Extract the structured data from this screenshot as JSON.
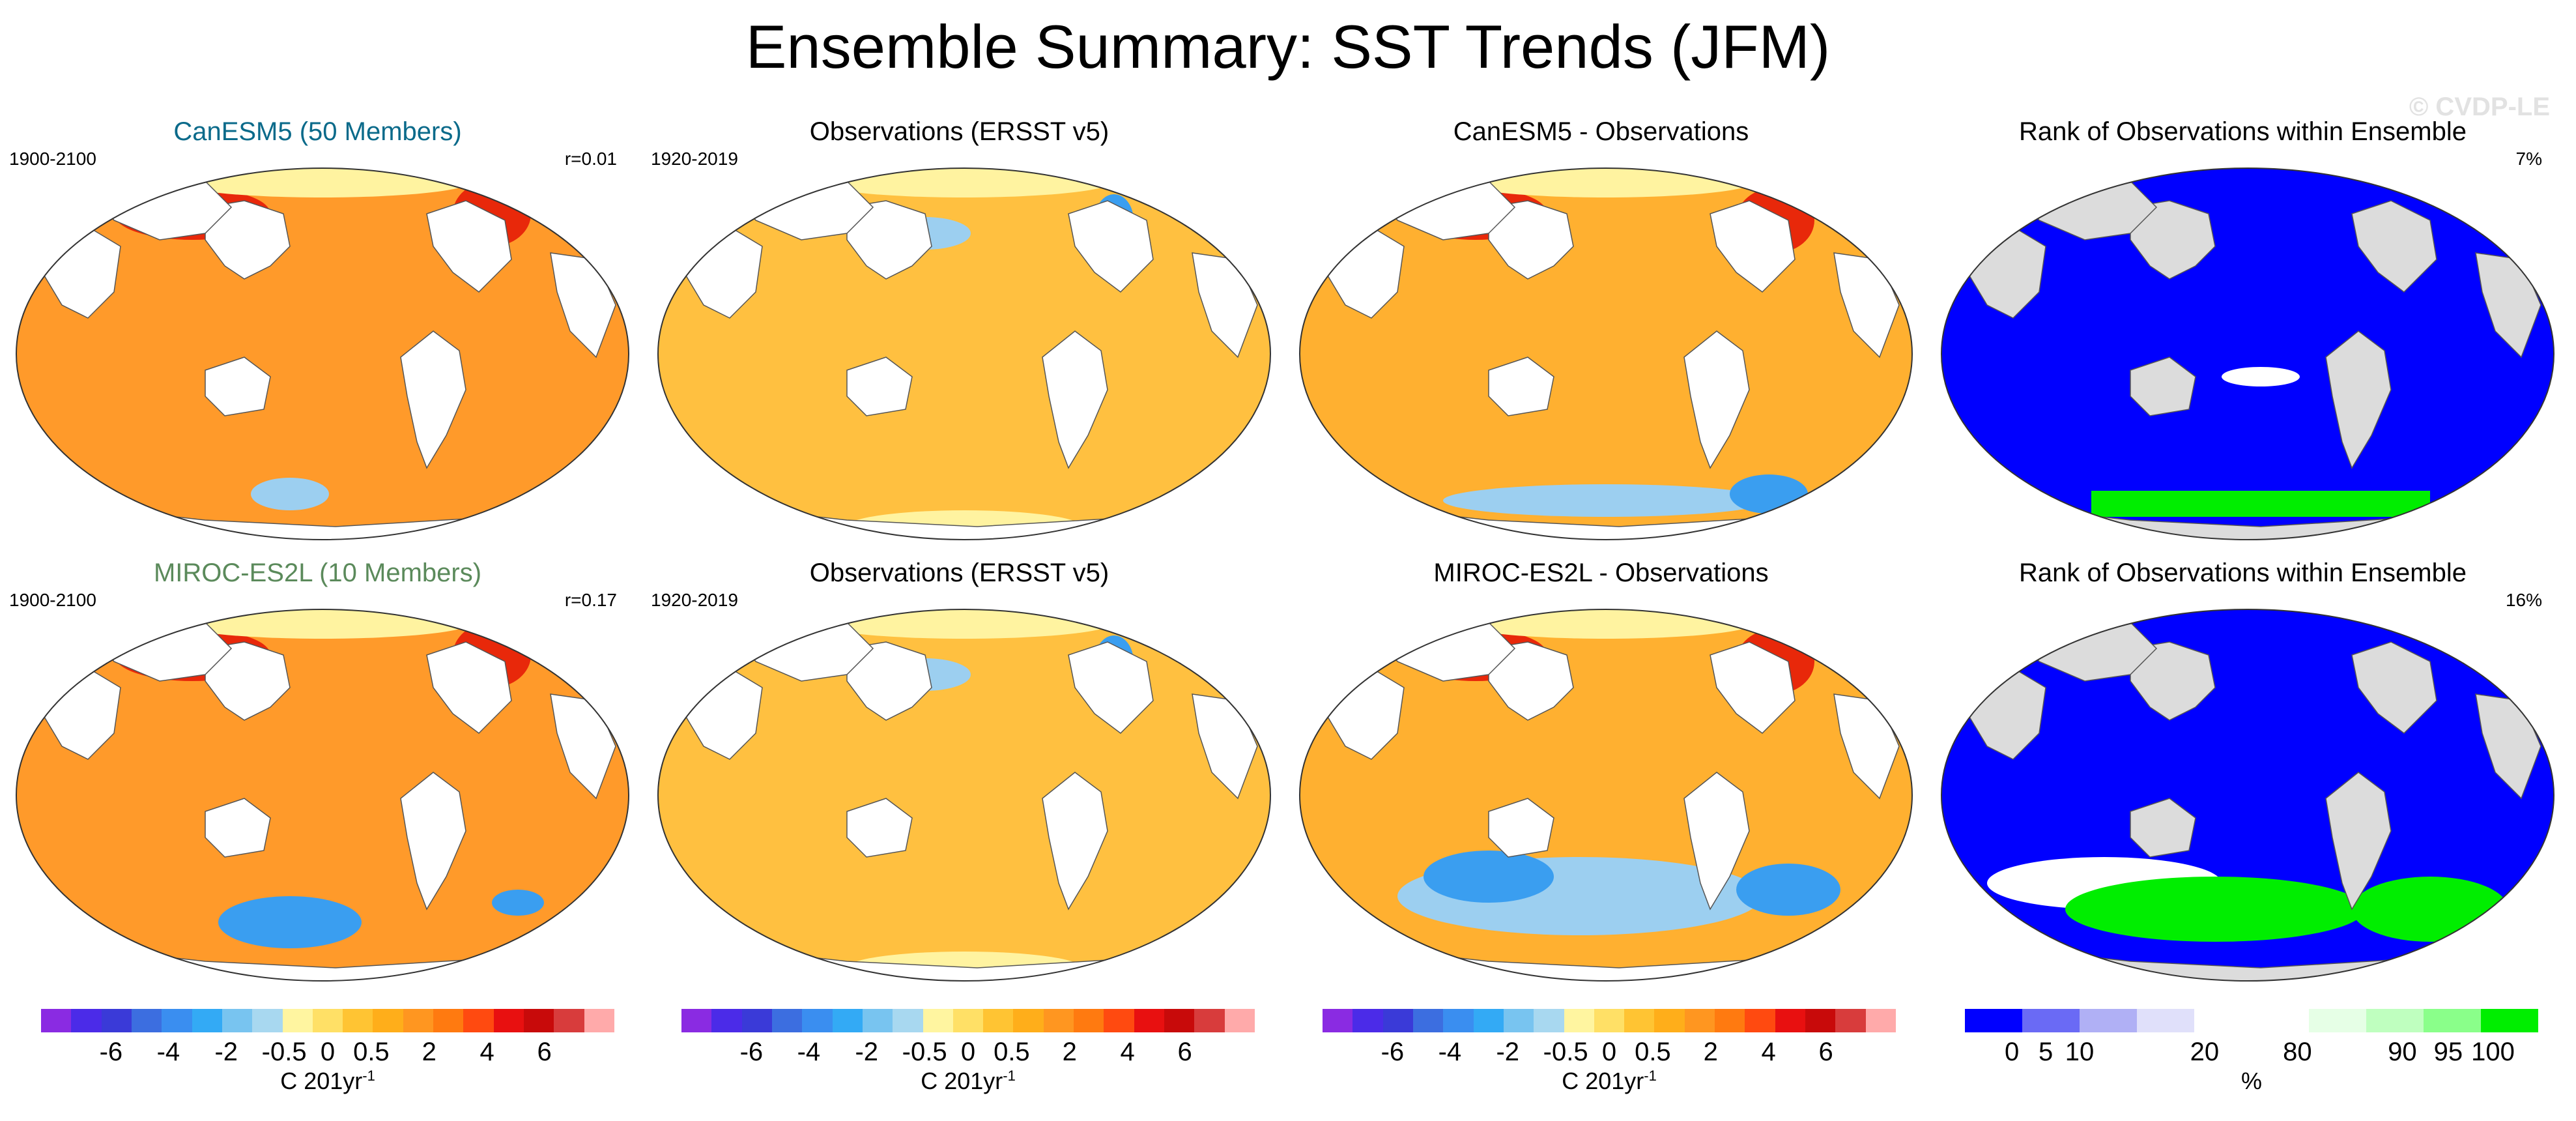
{
  "title": "Ensemble Summary: SST Trends (JFM)",
  "watermark": "© CVDP-LE",
  "rows": [
    {
      "model": {
        "title": "CanESM5 (50 Members)",
        "period": "1900-2100",
        "stat": "r=0.01"
      },
      "obs": {
        "title": "Observations (ERSST v5)",
        "period": "1920-2019"
      },
      "diff": {
        "title": "CanESM5 - Observations"
      },
      "rank": {
        "title": "Rank of Observations within Ensemble",
        "stat": "7%"
      }
    },
    {
      "model": {
        "title": "MIROC-ES2L (10 Members)",
        "period": "1900-2100",
        "stat": "r=0.17"
      },
      "obs": {
        "title": "Observations (ERSST v5)",
        "period": "1920-2019"
      },
      "diff": {
        "title": "MIROC-ES2L - Observations"
      },
      "rank": {
        "title": "Rank of Observations within Ensemble",
        "stat": "16%"
      }
    }
  ],
  "trend_colorbar": {
    "colors": [
      "#8a2be2",
      "#4b2be8",
      "#3a3ad8",
      "#3c6ee0",
      "#3a8ef0",
      "#33aaf5",
      "#78c4f0",
      "#a8d8f0",
      "#fff5a0",
      "#ffe066",
      "#ffc433",
      "#ffae1a",
      "#ff9620",
      "#ff7a10",
      "#ff4a10",
      "#e81010",
      "#c80a0a",
      "#d83c3c",
      "#ffaaaa"
    ],
    "ticks": [
      "-6",
      "-4",
      "-2",
      "-0.5",
      "0",
      "0.5",
      "2",
      "4",
      "6"
    ],
    "unit": "C 201yr",
    "unit_exp": "-1"
  },
  "rank_colorbar": {
    "colors": [
      "#0000ff",
      "#6a6af5",
      "#b0b0f5",
      "#e0e0fa",
      "#ffffff",
      "#ffffff",
      "#e6ffe6",
      "#bfffbf",
      "#8aff8a",
      "#00ee00"
    ],
    "ticks": [
      "0",
      "5",
      "10",
      "20",
      "80",
      "90",
      "95",
      "100"
    ],
    "unit": "%"
  },
  "map_colors": {
    "land_trend": "#ffffff",
    "land_rank": "#dcdcdc",
    "ocean_model": "#ff9a2a",
    "ocean_obs": "#ffc040",
    "ocean_diff": "#ffb030",
    "ocean_rank": "#0000ff",
    "warm_strong": "#e8280a",
    "cool": "#9ccff0",
    "cool_strong": "#3a9ef0",
    "pale": "#fff3a0",
    "rank_high": "#00ee00",
    "rank_mid": "#ffffff"
  }
}
